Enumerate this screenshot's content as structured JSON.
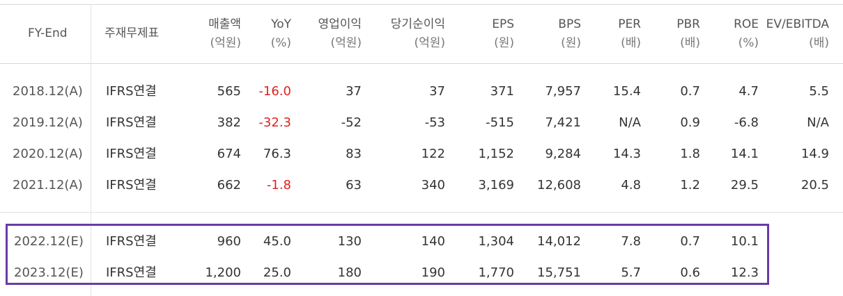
{
  "headers": [
    {
      "l1": "FY-End",
      "l2": ""
    },
    {
      "l1": "주재무제표",
      "l2": ""
    },
    {
      "l1": "매출액",
      "l2": "(억원)"
    },
    {
      "l1": "YoY",
      "l2": "(%)"
    },
    {
      "l1": "영업이익",
      "l2": "(억원)"
    },
    {
      "l1": "당기순이익",
      "l2": "(억원)"
    },
    {
      "l1": "EPS",
      "l2": "(원)"
    },
    {
      "l1": "BPS",
      "l2": "(원)"
    },
    {
      "l1": "PER",
      "l2": "(배)"
    },
    {
      "l1": "PBR",
      "l2": "(배)"
    },
    {
      "l1": "ROE",
      "l2": "(%)"
    },
    {
      "l1": "EV/EBITDA",
      "l2": "(배)"
    }
  ],
  "rows": [
    {
      "year": "2018.12(A)",
      "basis": "IFRS연결",
      "sales": "565",
      "yoy": "-16.0",
      "op": "37",
      "net": "37",
      "eps": "371",
      "bps": "7,957",
      "per": "15.4",
      "pbr": "0.7",
      "roe": "4.7",
      "ev": "5.5"
    },
    {
      "year": "2019.12(A)",
      "basis": "IFRS연결",
      "sales": "382",
      "yoy": "-32.3",
      "op": "-52",
      "net": "-53",
      "eps": "-515",
      "bps": "7,421",
      "per": "N/A",
      "pbr": "0.9",
      "roe": "-6.8",
      "ev": "N/A"
    },
    {
      "year": "2020.12(A)",
      "basis": "IFRS연결",
      "sales": "674",
      "yoy": "76.3",
      "op": "83",
      "net": "122",
      "eps": "1,152",
      "bps": "9,284",
      "per": "14.3",
      "pbr": "1.8",
      "roe": "14.1",
      "ev": "14.9"
    },
    {
      "year": "2021.12(A)",
      "basis": "IFRS연결",
      "sales": "662",
      "yoy": "-1.8",
      "op": "63",
      "net": "340",
      "eps": "3,169",
      "bps": "12,608",
      "per": "4.8",
      "pbr": "1.2",
      "roe": "29.5",
      "ev": "20.5"
    },
    {
      "year": "2022.12(E)",
      "basis": "IFRS연결",
      "sales": "960",
      "yoy": "45.0",
      "op": "130",
      "net": "140",
      "eps": "1,304",
      "bps": "14,012",
      "per": "7.8",
      "pbr": "0.7",
      "roe": "10.1",
      "ev": ""
    },
    {
      "year": "2023.12(E)",
      "basis": "IFRS연결",
      "sales": "1,200",
      "yoy": "25.0",
      "op": "180",
      "net": "190",
      "eps": "1,770",
      "bps": "15,751",
      "per": "5.7",
      "pbr": "0.6",
      "roe": "12.3",
      "ev": ""
    }
  ],
  "colors": {
    "negative_yoy": "#e02020",
    "highlight_border": "#6a3aa6"
  }
}
